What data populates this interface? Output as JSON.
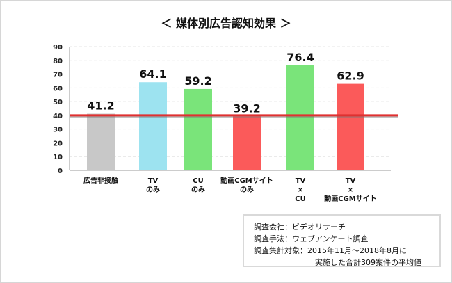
{
  "chart_data": {
    "type": "bar",
    "title": "＜ 媒体別広告認知効果 ＞",
    "categories": [
      [
        "広告非接触"
      ],
      [
        "TV",
        "のみ"
      ],
      [
        "CU",
        "のみ"
      ],
      [
        "動画CGMサイト",
        "のみ"
      ],
      [
        "TV",
        "×",
        "CU"
      ],
      [
        "TV",
        "×",
        "動画CGMサイト"
      ]
    ],
    "values": [
      41.2,
      64.1,
      59.2,
      39.2,
      76.4,
      62.9
    ],
    "value_labels": [
      "41.2",
      "64.1",
      "59.2",
      "39.2",
      "76.4",
      "62.9"
    ],
    "colors": [
      "#c8c8c8",
      "#9de3f0",
      "#7ae47a",
      "#fb5a5a",
      "#7ae47a",
      "#fb5a5a"
    ],
    "reference_line": {
      "value": 40,
      "color": "#e03030"
    },
    "ylim": [
      0,
      90
    ],
    "yticks": [
      0,
      10,
      20,
      30,
      40,
      50,
      60,
      70,
      80,
      90
    ],
    "grid": true,
    "xlabel": "",
    "ylabel": ""
  },
  "note": {
    "line1": "調査会社：ビデオリサーチ",
    "line2": "調査手法：ウェブアンケート調査",
    "line3": "調査集計対象：2015年11月〜2018年8月に",
    "line4": "実施した合計309案件の平均値"
  }
}
